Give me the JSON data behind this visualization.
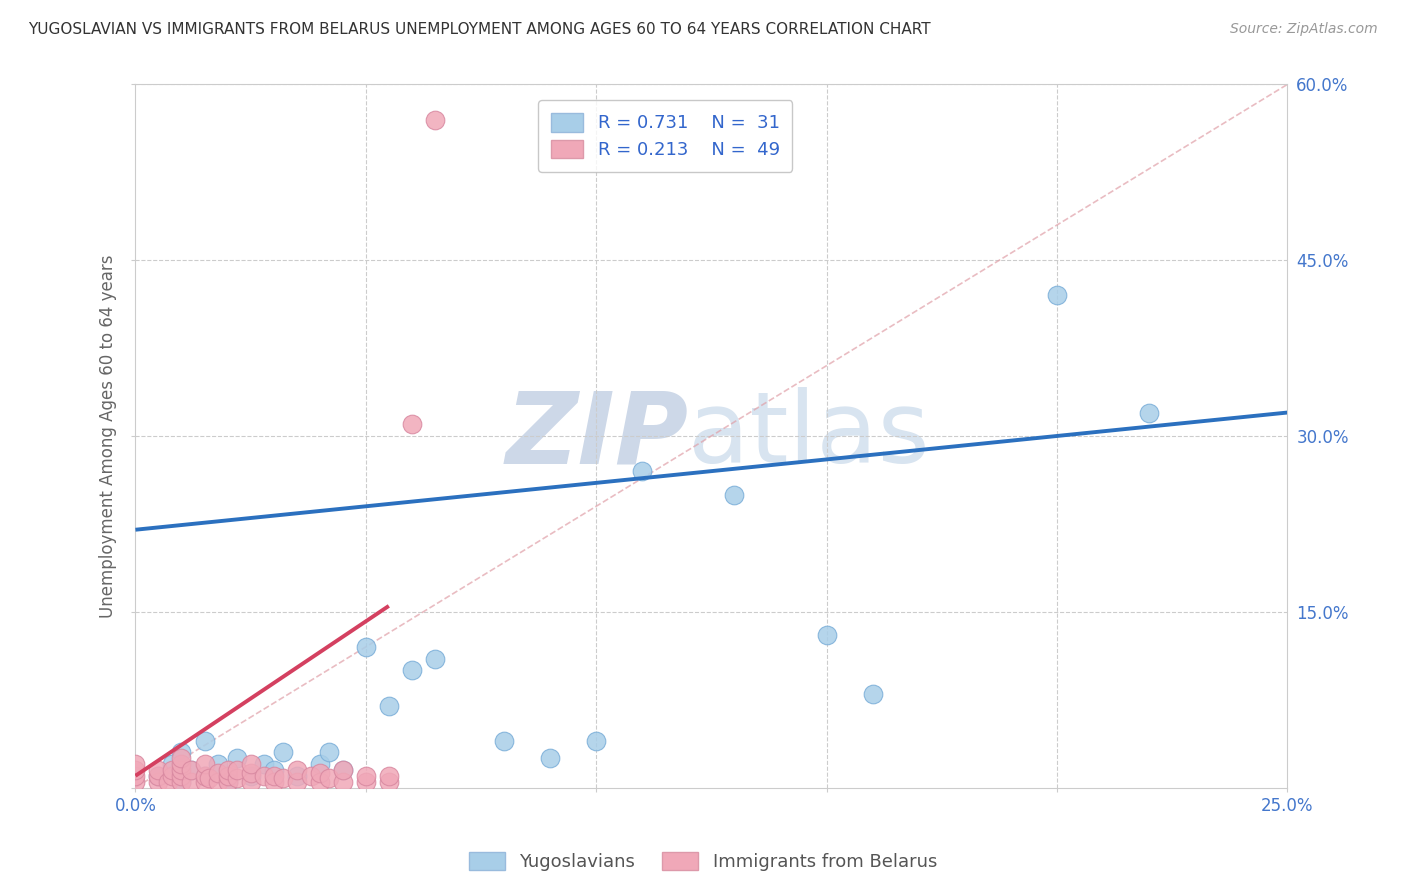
{
  "title": "YUGOSLAVIAN VS IMMIGRANTS FROM BELARUS UNEMPLOYMENT AMONG AGES 60 TO 64 YEARS CORRELATION CHART",
  "source": "Source: ZipAtlas.com",
  "ylabel": "Unemployment Among Ages 60 to 64 years",
  "xlim": [
    0.0,
    0.25
  ],
  "ylim": [
    0.0,
    0.6
  ],
  "xticks": [
    0.0,
    0.05,
    0.1,
    0.15,
    0.2,
    0.25
  ],
  "yticks": [
    0.0,
    0.15,
    0.3,
    0.45,
    0.6
  ],
  "R_blue": 0.731,
  "N_blue": 31,
  "R_pink": 0.213,
  "N_pink": 49,
  "blue_color": "#A8CEE8",
  "pink_color": "#F0A8B8",
  "blue_line_color": "#2B70BF",
  "pink_line_color": "#D44060",
  "legend_label_blue": "Yugoslavians",
  "legend_label_pink": "Immigrants from Belarus",
  "blue_line_x0": 0.0,
  "blue_line_y0": 0.22,
  "blue_line_x1": 0.25,
  "blue_line_y1": 0.32,
  "pink_line_x0": 0.0,
  "pink_line_y0": 0.01,
  "pink_line_x1": 0.055,
  "pink_line_y1": 0.155,
  "blue_scatter_x": [
    0.005,
    0.008,
    0.01,
    0.01,
    0.012,
    0.015,
    0.015,
    0.018,
    0.02,
    0.022,
    0.025,
    0.028,
    0.03,
    0.032,
    0.035,
    0.04,
    0.042,
    0.045,
    0.05,
    0.055,
    0.06,
    0.065,
    0.08,
    0.09,
    0.1,
    0.11,
    0.13,
    0.15,
    0.16,
    0.2,
    0.22
  ],
  "blue_scatter_y": [
    0.01,
    0.02,
    0.005,
    0.03,
    0.015,
    0.01,
    0.04,
    0.02,
    0.005,
    0.025,
    0.01,
    0.02,
    0.015,
    0.03,
    0.01,
    0.02,
    0.03,
    0.015,
    0.12,
    0.07,
    0.1,
    0.11,
    0.04,
    0.025,
    0.04,
    0.27,
    0.25,
    0.13,
    0.08,
    0.42,
    0.32
  ],
  "pink_scatter_x": [
    0.0,
    0.0,
    0.0,
    0.0,
    0.005,
    0.005,
    0.005,
    0.007,
    0.008,
    0.008,
    0.01,
    0.01,
    0.01,
    0.01,
    0.01,
    0.012,
    0.012,
    0.015,
    0.015,
    0.015,
    0.016,
    0.018,
    0.018,
    0.02,
    0.02,
    0.02,
    0.022,
    0.022,
    0.025,
    0.025,
    0.025,
    0.028,
    0.03,
    0.03,
    0.032,
    0.035,
    0.035,
    0.038,
    0.04,
    0.04,
    0.042,
    0.045,
    0.045,
    0.05,
    0.05,
    0.055,
    0.055,
    0.06,
    0.065
  ],
  "pink_scatter_y": [
    0.005,
    0.01,
    0.015,
    0.02,
    0.005,
    0.01,
    0.015,
    0.005,
    0.01,
    0.015,
    0.005,
    0.01,
    0.015,
    0.02,
    0.025,
    0.005,
    0.015,
    0.005,
    0.01,
    0.02,
    0.008,
    0.005,
    0.012,
    0.005,
    0.01,
    0.015,
    0.008,
    0.015,
    0.005,
    0.012,
    0.02,
    0.01,
    0.005,
    0.01,
    0.008,
    0.005,
    0.015,
    0.01,
    0.005,
    0.012,
    0.008,
    0.005,
    0.015,
    0.005,
    0.01,
    0.005,
    0.01,
    0.31,
    0.57
  ]
}
